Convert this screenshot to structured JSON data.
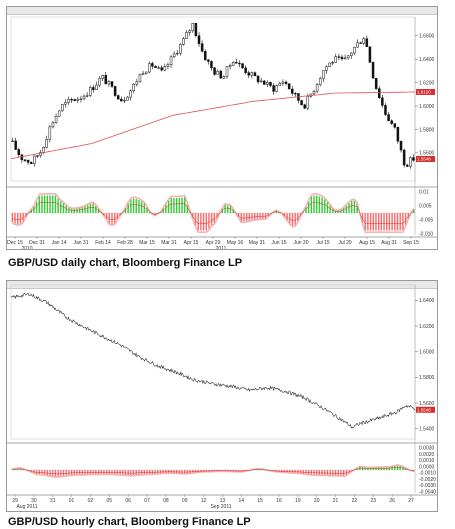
{
  "colors": {
    "candle": "#111111",
    "moving_average": "#e05050",
    "price_badge": "#d32f2f",
    "histogram_positive": "#33cc33",
    "histogram_negative": "#ff6666",
    "signal_band": "#f4a0a0",
    "line_price": "#333333"
  },
  "chart_data": [
    {
      "type": "candlestick",
      "title": "GBP/USD daily chart, Bloomberg Finance LP",
      "price_axis": {
        "ticks": [
          "1.6600",
          "1.6400",
          "1.6200",
          "1.6000",
          "1.5800",
          "1.5600"
        ],
        "ylim": [
          1.536,
          1.676
        ]
      },
      "current_price_label": "1.5548",
      "ma_label": "1.6120",
      "x_ticks": [
        "Dec 15",
        "Dec 31",
        "Jan 14",
        "Jan 31",
        "Feb 14",
        "Feb 28",
        "Mar 15",
        "Mar 31",
        "Apr 15",
        "Apr 29",
        "May 16",
        "May 31",
        "Jun 15",
        "Jun 30",
        "Jul 15",
        "Jul 29",
        "Aug 15",
        "Aug 31",
        "Sep 15"
      ],
      "x_sub_labels": [
        "2010",
        "2011"
      ],
      "price_path": {
        "x": [
          0,
          5,
          10,
          15,
          20,
          25,
          30,
          35,
          40,
          45,
          50,
          55,
          60,
          65,
          70,
          75,
          80,
          85,
          90,
          95,
          100,
          105,
          110,
          115,
          120,
          125,
          130,
          135,
          140,
          145,
          150,
          155,
          160,
          165,
          170,
          175,
          180,
          185,
          190,
          195,
          200
        ],
        "close": [
          1.57,
          1.556,
          1.552,
          1.562,
          1.585,
          1.6,
          1.605,
          1.608,
          1.615,
          1.625,
          1.615,
          1.605,
          1.615,
          1.63,
          1.635,
          1.628,
          1.642,
          1.655,
          1.67,
          1.645,
          1.63,
          1.625,
          1.64,
          1.632,
          1.625,
          1.62,
          1.615,
          1.622,
          1.61,
          1.6,
          1.615,
          1.632,
          1.64,
          1.638,
          1.65,
          1.66,
          1.62,
          1.595,
          1.58,
          1.55,
          1.556
        ]
      },
      "moving_average": {
        "x": [
          0,
          40,
          80,
          120,
          160,
          200
        ],
        "value": [
          1.555,
          1.568,
          1.592,
          1.604,
          1.611,
          1.612
        ]
      },
      "oscillator_axis": {
        "ticks": [
          "0.01",
          "0.005",
          "-0.005",
          "-0.010"
        ]
      }
    },
    {
      "type": "line",
      "title": "GBP/USD hourly chart, Bloomberg Finance LP",
      "price_axis": {
        "ticks": [
          "1.6400",
          "1.6200",
          "1.6000",
          "1.5800",
          "1.5600",
          "1.5400"
        ],
        "ylim": [
          1.532,
          1.652
        ]
      },
      "current_price_label": "1.5548",
      "x_ticks": [
        "29",
        "30",
        "31",
        "01",
        "02",
        "05",
        "06",
        "07",
        "08",
        "09",
        "12",
        "13",
        "14",
        "15",
        "16",
        "19",
        "20",
        "21",
        "22",
        "23",
        "26",
        "27"
      ],
      "x_sub_labels": [
        "Aug 2011",
        "Sep 2011"
      ],
      "price_path": {
        "x": [
          0,
          10,
          20,
          30,
          40,
          50,
          60,
          70,
          80,
          90,
          100,
          110,
          120,
          130,
          140,
          150,
          160,
          170,
          180,
          186,
          190,
          200,
          210,
          215,
          220
        ],
        "close": [
          1.642,
          1.645,
          1.638,
          1.627,
          1.619,
          1.612,
          1.605,
          1.596,
          1.589,
          1.584,
          1.578,
          1.575,
          1.573,
          1.57,
          1.572,
          1.569,
          1.564,
          1.556,
          1.547,
          1.541,
          1.544,
          1.548,
          1.553,
          1.558,
          1.556
        ]
      },
      "oscillator_axis": {
        "ticks": [
          "0.0030",
          "0.0020",
          "0.0010",
          "0.0000",
          "-0.0010",
          "-0.0020",
          "-0.0030",
          "-0.0040"
        ]
      }
    }
  ]
}
